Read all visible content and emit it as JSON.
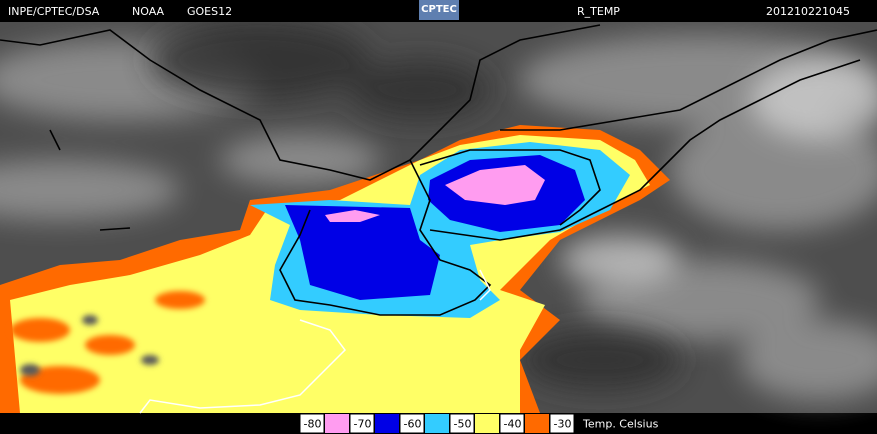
{
  "header": {
    "source": "INPE/CPTEC/DSA",
    "agency": "NOAA",
    "satellite": "GOES12",
    "logo": "CPTEC",
    "product": "R_TEMP",
    "timestamp": "201210221045"
  },
  "legend": {
    "levels": [
      -80,
      -70,
      -60,
      -50,
      -40,
      -30
    ],
    "colors": [
      "#ff9cf0",
      "#0000e6",
      "#33ccff",
      "#ffff66",
      "#ff6a00"
    ],
    "unit": "Temp. Celsius"
  }
}
